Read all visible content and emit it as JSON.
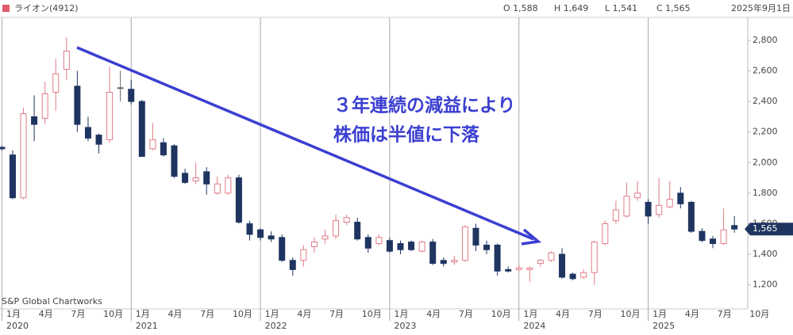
{
  "chart_data": {
    "type": "candlestick",
    "title": "ライオン(4912)",
    "ohlc_labels": [
      "O 1,588",
      "H 1,649",
      "L 1,541",
      "C 1,565"
    ],
    "date": "2025年9月1日",
    "source": "S&P Global Chartworks",
    "annotation": {
      "lines": [
        "３年連続の減益により",
        "株価は半値に下落"
      ],
      "color": "#3b3fd0"
    },
    "up_color": "#e07b86",
    "down_color": "#1f3560",
    "categories": [
      null,
      "1月",
      null,
      null,
      "4月",
      null,
      null,
      "7月",
      null,
      null,
      "10月",
      null,
      null,
      "1月",
      null,
      null,
      "4月",
      null,
      null,
      "7月",
      null,
      null,
      "10月",
      null,
      null,
      "1月",
      null,
      null,
      "4月",
      null,
      null,
      "7月",
      null,
      null,
      "10月",
      null,
      null,
      "1月",
      null,
      null,
      "4月",
      null,
      null,
      "7月",
      null,
      null,
      "10月",
      null,
      null,
      "1月",
      null,
      null,
      "4月",
      null,
      null,
      "7月",
      null,
      null,
      "10月",
      null,
      null,
      "1月",
      null,
      null,
      "4月",
      null,
      null,
      "7月",
      null,
      null,
      "10月"
    ],
    "years": [
      null,
      "2020",
      null,
      null,
      null,
      null,
      null,
      null,
      null,
      null,
      null,
      null,
      null,
      "2021",
      null,
      null,
      null,
      null,
      null,
      null,
      null,
      null,
      null,
      null,
      null,
      "2022",
      null,
      null,
      null,
      null,
      null,
      null,
      null,
      null,
      null,
      null,
      null,
      "2023",
      null,
      null,
      null,
      null,
      null,
      null,
      null,
      null,
      null,
      null,
      null,
      "2024",
      null,
      null,
      null,
      null,
      null,
      null,
      null,
      null,
      null,
      null,
      null,
      "2025",
      null,
      null,
      null,
      null,
      null,
      null,
      null,
      null,
      null
    ],
    "series": [
      {
        "name": "ライオン(4912)",
        "open": [
          2100,
          2050,
          1770,
          2300,
          2290,
          2460,
          2610,
          2500,
          2230,
          2180,
          2150,
          2490,
          2480,
          2400,
          2090,
          2130,
          2110,
          1930,
          1880,
          1940,
          1800,
          1800,
          1900,
          1600,
          1560,
          1520,
          1510,
          1360,
          1360,
          1450,
          1500,
          1520,
          1610,
          1610,
          1510,
          1470,
          1490,
          1470,
          1480,
          1420,
          1480,
          1360,
          1350,
          1360,
          1570,
          1460,
          1460,
          1300,
          1300,
          1300,
          1340,
          1360,
          1400,
          1270,
          1250,
          1280,
          1470,
          1620,
          1650,
          1770,
          1740,
          1660,
          1710,
          1800,
          1740,
          1550,
          1500,
          1470,
          1588,
          null,
          null
        ],
        "high": [
          2110,
          2080,
          2360,
          2440,
          2530,
          2680,
          2820,
          2600,
          2300,
          2190,
          2630,
          2600,
          2540,
          2410,
          2260,
          2160,
          2120,
          1960,
          2000,
          1970,
          1910,
          1920,
          1920,
          1620,
          1570,
          1550,
          1530,
          1380,
          1460,
          1510,
          1560,
          1660,
          1660,
          1640,
          1530,
          1530,
          1510,
          1490,
          1490,
          1490,
          1500,
          1380,
          1390,
          1590,
          1600,
          1490,
          1470,
          1320,
          1330,
          1320,
          1370,
          1420,
          1440,
          1280,
          1300,
          1490,
          1620,
          1750,
          1870,
          1880,
          1760,
          1900,
          1880,
          1840,
          1750,
          1570,
          1520,
          1700,
          1649,
          null,
          null
        ],
        "low": [
          2080,
          1760,
          1760,
          2140,
          2250,
          2340,
          2540,
          2200,
          2140,
          2060,
          2130,
          2400,
          2380,
          2040,
          2080,
          2040,
          1900,
          1860,
          1860,
          1790,
          1790,
          1790,
          1600,
          1490,
          1490,
          1480,
          1350,
          1260,
          1320,
          1410,
          1470,
          1500,
          1590,
          1490,
          1410,
          1460,
          1410,
          1400,
          1420,
          1410,
          1330,
          1320,
          1330,
          1350,
          1420,
          1400,
          1260,
          1280,
          1290,
          1220,
          1320,
          1350,
          1240,
          1230,
          1240,
          1200,
          1460,
          1600,
          1640,
          1750,
          1600,
          1640,
          1700,
          1700,
          1540,
          1480,
          1440,
          1460,
          1541,
          null,
          null
        ],
        "close": [
          2090,
          1770,
          2320,
          2250,
          2450,
          2580,
          2730,
          2250,
          2160,
          2120,
          2460,
          2490,
          2400,
          2040,
          2150,
          2050,
          1910,
          1870,
          1900,
          1860,
          1860,
          1900,
          1610,
          1530,
          1510,
          1500,
          1360,
          1300,
          1430,
          1480,
          1520,
          1620,
          1640,
          1500,
          1440,
          1510,
          1420,
          1430,
          1430,
          1480,
          1340,
          1340,
          1360,
          1580,
          1460,
          1430,
          1290,
          1290,
          1310,
          1310,
          1360,
          1410,
          1250,
          1240,
          1280,
          1480,
          1600,
          1690,
          1780,
          1800,
          1650,
          1720,
          1760,
          1730,
          1550,
          1490,
          1470,
          1560,
          1565,
          null,
          null
        ]
      }
    ],
    "ylim": [
      1110,
      2950
    ],
    "yticks": [
      {
        "value": 1200,
        "label": "1,200"
      },
      {
        "value": 1400,
        "label": "1,400"
      },
      {
        "value": 1600,
        "label": "1,600"
      },
      {
        "value": 1800,
        "label": "1,800"
      },
      {
        "value": 2000,
        "label": "2,000"
      },
      {
        "value": 2200,
        "label": "2,200"
      },
      {
        "value": 2400,
        "label": "2,400"
      },
      {
        "value": 2600,
        "label": "2,600"
      },
      {
        "value": 2800,
        "label": "2,800"
      }
    ],
    "price_tag": {
      "value": 1565,
      "label": "1,565",
      "color": "#1f3560"
    }
  }
}
